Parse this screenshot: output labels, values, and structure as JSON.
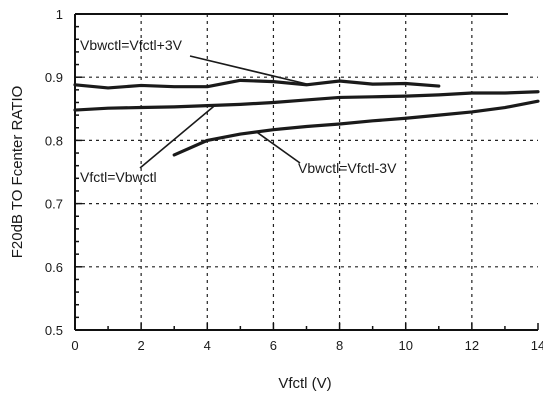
{
  "chart_data": {
    "type": "line",
    "title": "",
    "xlabel": "Vfctl (V)",
    "ylabel": "F20dB TO Fcenter RATIO",
    "xlim": [
      0,
      14
    ],
    "ylim": [
      0.5,
      1.0
    ],
    "xticks": [
      0,
      2,
      4,
      6,
      8,
      10,
      12,
      14
    ],
    "yticks": [
      0.5,
      0.6,
      0.7,
      0.8,
      0.9,
      1
    ],
    "ytick_labels": [
      "0.5",
      "0.6",
      "0.7",
      "0.8",
      "0.9",
      "1"
    ],
    "grid": "dotted",
    "series": [
      {
        "name": "Vbwctl=Vfctl+3V",
        "x": [
          0,
          1,
          2,
          3,
          4,
          5,
          6,
          7,
          8,
          9,
          10,
          11
        ],
        "values": [
          0.888,
          0.883,
          0.887,
          0.885,
          0.885,
          0.895,
          0.893,
          0.888,
          0.894,
          0.889,
          0.89,
          0.886
        ]
      },
      {
        "name": "Vfctl=Vbwctl",
        "x": [
          0,
          1,
          2,
          3,
          4,
          5,
          6,
          7,
          8,
          9,
          10,
          11,
          12,
          13,
          14
        ],
        "values": [
          0.848,
          0.851,
          0.852,
          0.853,
          0.855,
          0.857,
          0.86,
          0.864,
          0.868,
          0.869,
          0.87,
          0.872,
          0.875,
          0.875,
          0.877
        ]
      },
      {
        "name": "Vbwctl=Vfctl-3V",
        "x": [
          3,
          4,
          5,
          6,
          7,
          8,
          9,
          10,
          11,
          12,
          13,
          14
        ],
        "values": [
          0.777,
          0.8,
          0.81,
          0.817,
          0.822,
          0.826,
          0.831,
          0.835,
          0.84,
          0.845,
          0.852,
          0.862
        ]
      }
    ],
    "annotations": [
      {
        "text": "Vbwctl=Vfctl+3V",
        "points_to": {
          "x": 7.1,
          "y": 0.888
        }
      },
      {
        "text": "Vfctl=Vbwctl",
        "points_to": {
          "x": 4.2,
          "y": 0.854
        }
      },
      {
        "text": "Vbwctl=Vfctl-3V",
        "points_to": {
          "x": 5.5,
          "y": 0.813
        }
      }
    ]
  }
}
